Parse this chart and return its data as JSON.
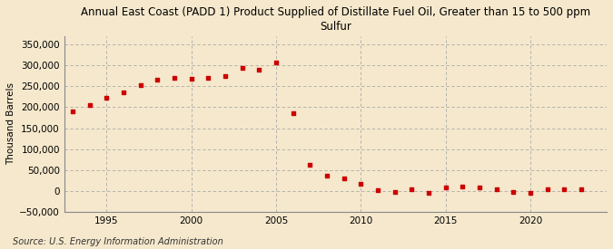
{
  "title": "Annual East Coast (PADD 1) Product Supplied of Distillate Fuel Oil, Greater than 15 to 500 ppm\nSulfur",
  "ylabel": "Thousand Barrels",
  "source": "Source: U.S. Energy Information Administration",
  "background_color": "#f5e8cc",
  "plot_bg_color": "#f5e8cc",
  "marker_color": "#cc0000",
  "years": [
    1993,
    1994,
    1995,
    1996,
    1997,
    1998,
    1999,
    2000,
    2001,
    2002,
    2003,
    2004,
    2005,
    2006,
    2007,
    2008,
    2009,
    2010,
    2011,
    2012,
    2013,
    2014,
    2015,
    2016,
    2017,
    2018,
    2019,
    2020,
    2021,
    2022,
    2023
  ],
  "values": [
    190000,
    205000,
    222000,
    235000,
    252000,
    265000,
    270000,
    268000,
    270000,
    275000,
    293000,
    290000,
    308000,
    185000,
    62000,
    37000,
    30000,
    18000,
    2000,
    -3000,
    5000,
    -5000,
    8000,
    10000,
    8000,
    5000,
    -3000,
    -5000,
    5000,
    3000,
    5000
  ],
  "ylim": [
    -50000,
    370000
  ],
  "xlim": [
    1992.5,
    2024.5
  ],
  "yticks": [
    -50000,
    0,
    50000,
    100000,
    150000,
    200000,
    250000,
    300000,
    350000
  ],
  "xticks": [
    1995,
    2000,
    2005,
    2010,
    2015,
    2020
  ],
  "grid_color": "#aaaaaa",
  "title_fontsize": 8.5,
  "axis_fontsize": 7.5,
  "ylabel_fontsize": 7.5,
  "source_fontsize": 7.0
}
